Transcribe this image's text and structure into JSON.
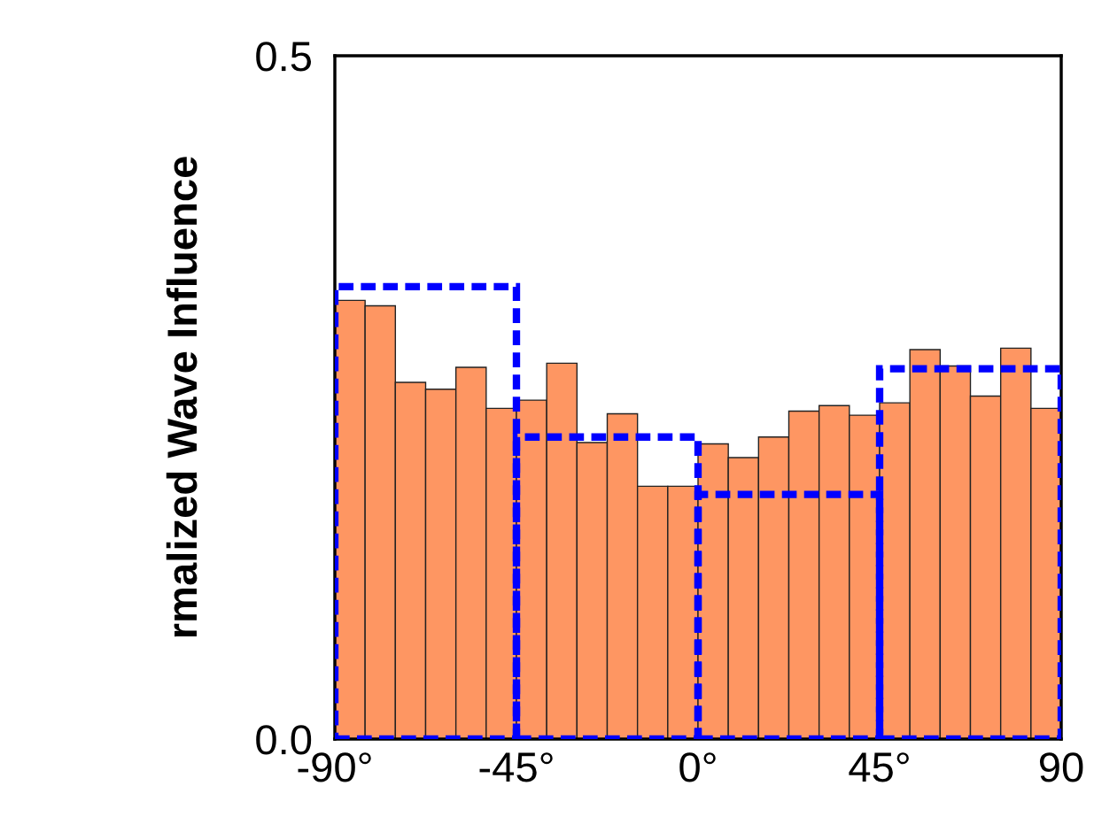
{
  "chart_data": {
    "type": "histogram",
    "ylabel": "rmalized Wave Influence",
    "xlim": [
      -90,
      90
    ],
    "ylim": [
      0,
      0.5
    ],
    "xticks": [
      {
        "value": -90,
        "label": "-90°"
      },
      {
        "value": -45,
        "label": "-45°"
      },
      {
        "value": 0,
        "label": "0°"
      },
      {
        "value": 45,
        "label": "45°"
      },
      {
        "value": 90,
        "label": "90"
      }
    ],
    "yticks": [
      {
        "value": 0,
        "label": "0.0"
      },
      {
        "value": 0.5,
        "label": "0.5"
      }
    ],
    "bins": [
      -90,
      -82.5,
      -75,
      -67.5,
      -60,
      -52.5,
      -45,
      -37.5,
      -30,
      -22.5,
      -15,
      -7.5,
      0,
      7.5,
      15,
      22.5,
      30,
      37.5,
      45,
      52.5,
      60,
      67.5,
      75,
      82.5,
      90
    ],
    "series": [
      {
        "type": "histogram",
        "color": "#fe9662",
        "values": [
          0.321,
          0.317,
          0.261,
          0.256,
          0.272,
          0.242,
          0.248,
          0.275,
          0.217,
          0.238,
          0.185,
          0.185,
          0.216,
          0.206,
          0.221,
          0.24,
          0.244,
          0.237,
          0.246,
          0.285,
          0.273,
          0.251,
          0.286,
          0.242
        ]
      },
      {
        "type": "bar",
        "color": "#0000ff",
        "line_style": "dashed",
        "x": [
          -67.5,
          -22.5,
          22.5,
          67.5
        ],
        "values": [
          0.331,
          0.221,
          0.179,
          0.271
        ]
      }
    ]
  }
}
